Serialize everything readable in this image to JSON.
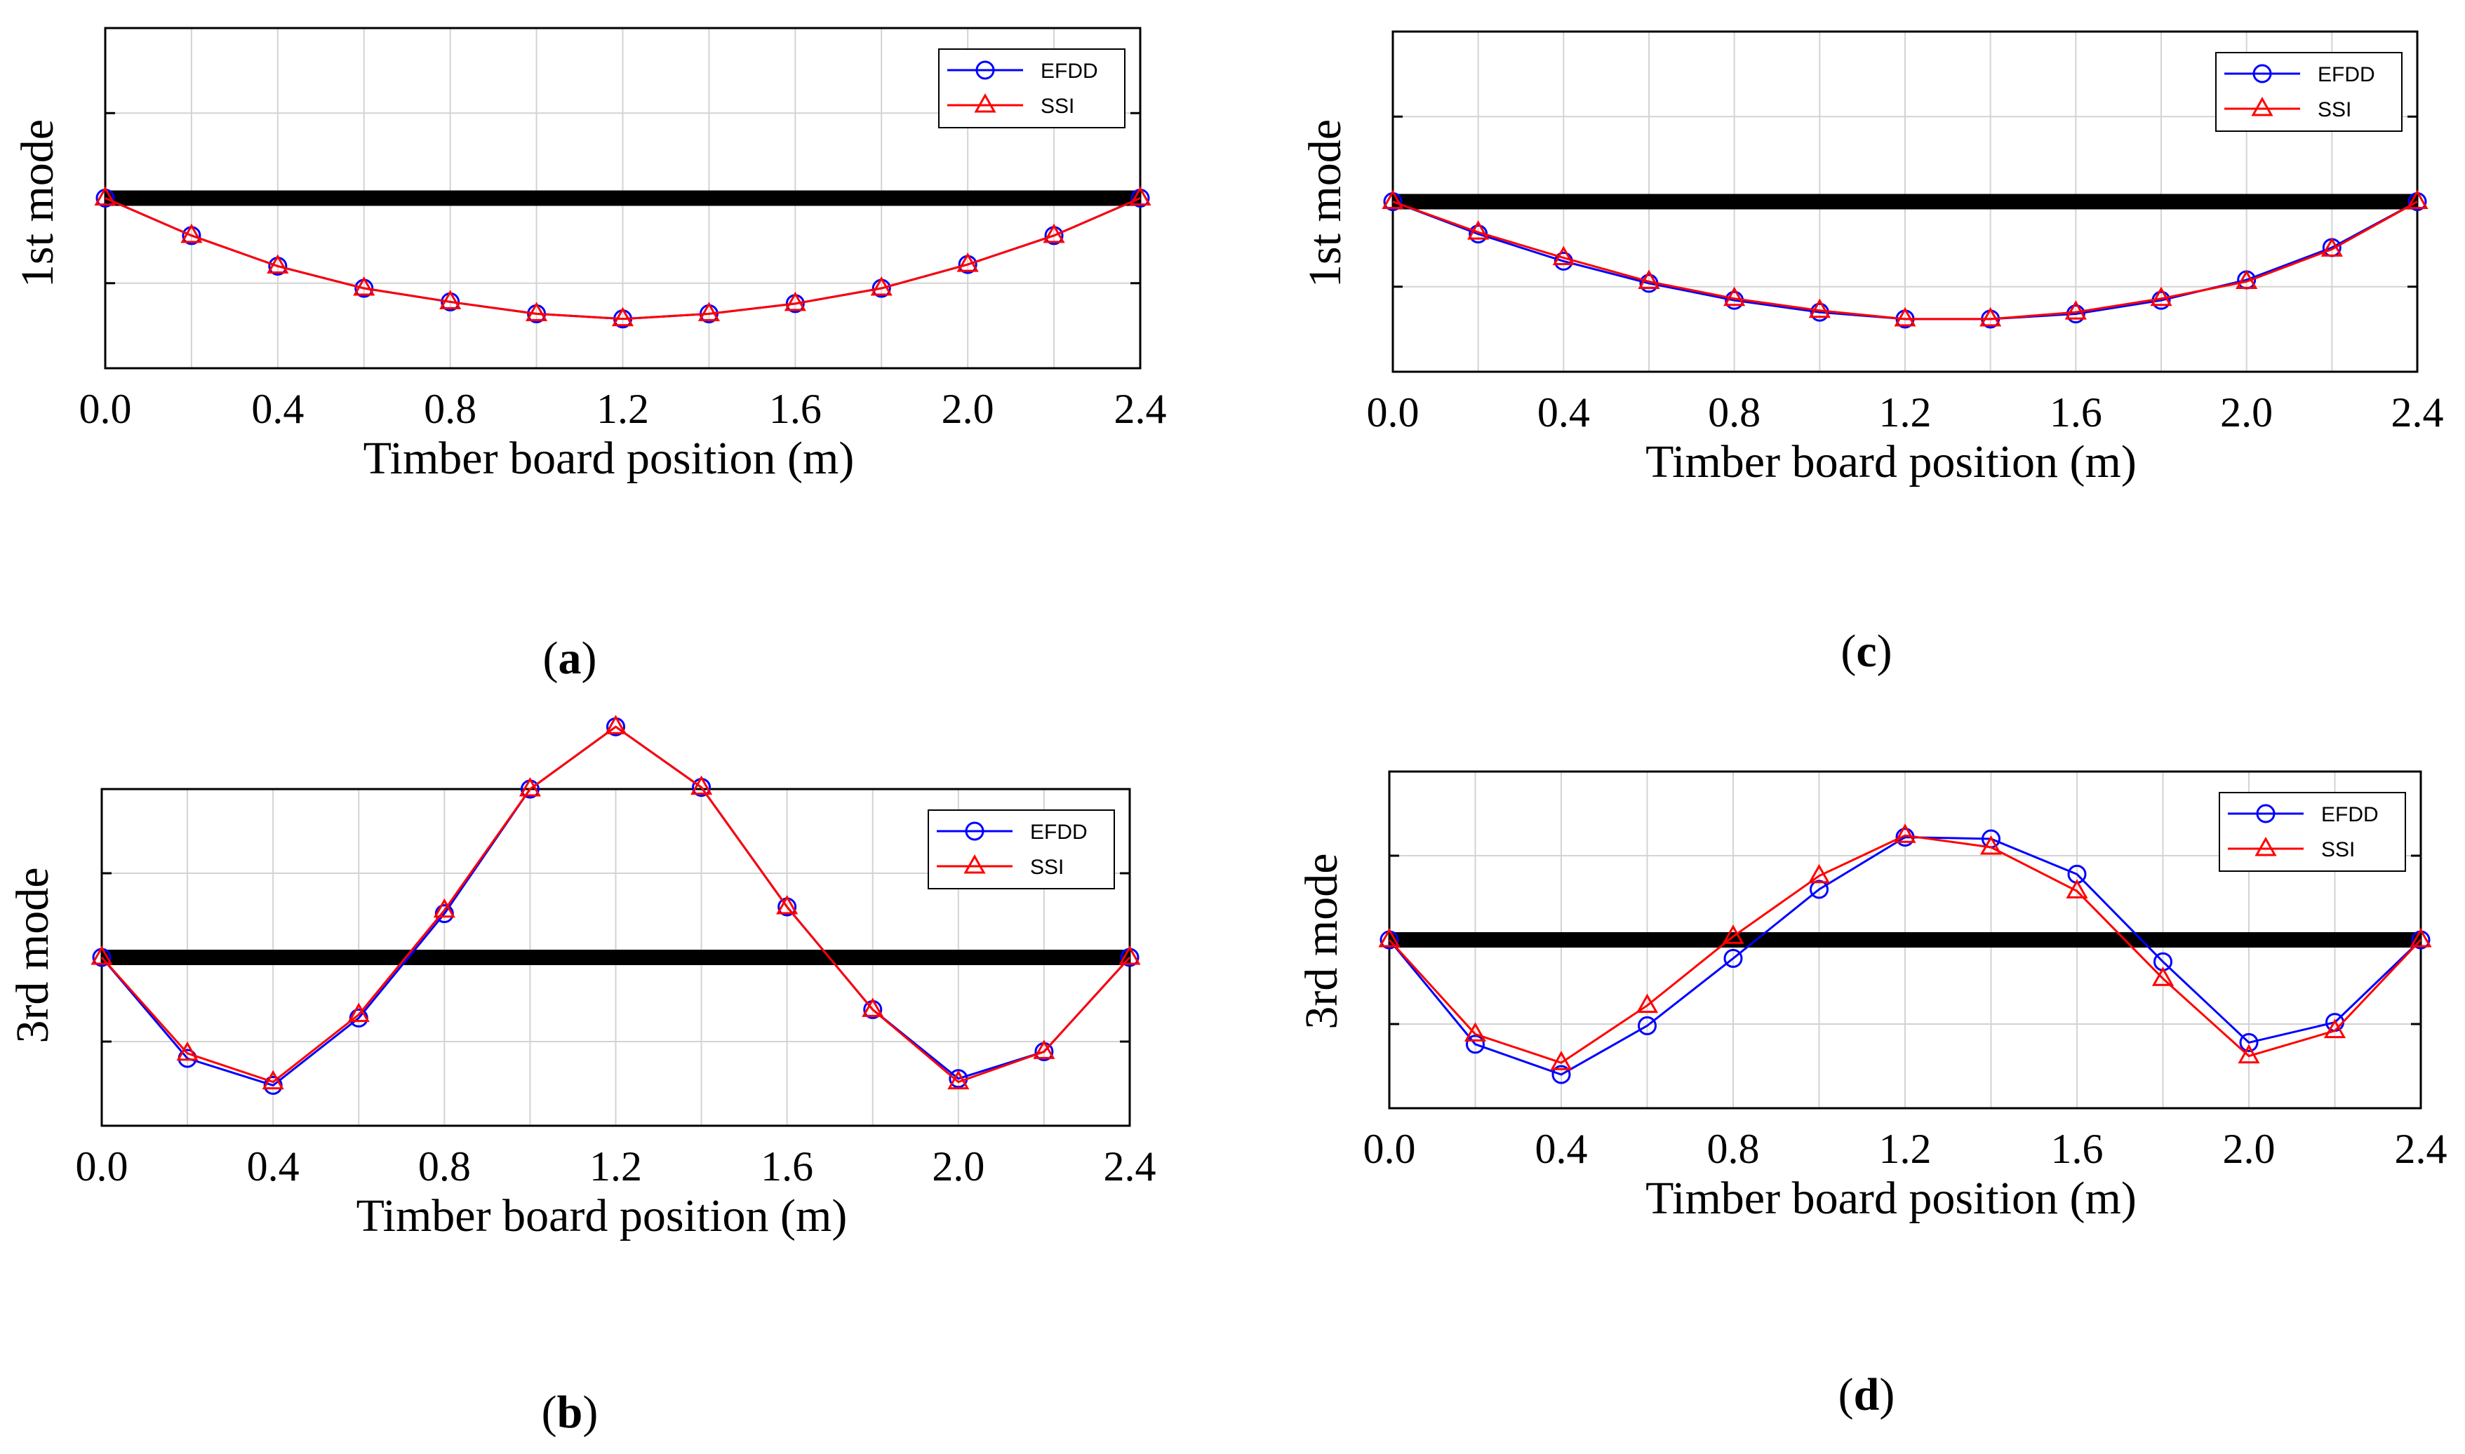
{
  "figure": {
    "x_ticks": [
      "0.0",
      "0.4",
      "0.8",
      "1.2",
      "1.6",
      "2.0",
      "2.4"
    ]
  },
  "chart_data": [
    {
      "type": "line",
      "panel": "a",
      "caption": "(a)",
      "caption_letter": "a",
      "xlabel": "Timber board position (m)",
      "ylabel": "1st mode",
      "xlim": [
        0,
        2.4
      ],
      "ylim": [
        -1,
        1
      ],
      "grid": true,
      "legend": "top-right",
      "x": [
        0,
        0.2,
        0.4,
        0.6,
        0.8,
        1.0,
        1.2,
        1.4,
        1.6,
        1.8,
        2.0,
        2.2,
        2.4
      ],
      "series": [
        {
          "name": "EFDD",
          "color": "#0000ff",
          "marker": "circle",
          "values": [
            0,
            -0.22,
            -0.4,
            -0.53,
            -0.61,
            -0.68,
            -0.71,
            -0.68,
            -0.62,
            -0.53,
            -0.39,
            -0.22,
            0
          ]
        },
        {
          "name": "SSI",
          "color": "#ff0000",
          "marker": "triangle",
          "values": [
            0,
            -0.22,
            -0.4,
            -0.53,
            -0.61,
            -0.68,
            -0.71,
            -0.68,
            -0.62,
            -0.53,
            -0.39,
            -0.22,
            0
          ]
        }
      ]
    },
    {
      "type": "line",
      "panel": "b",
      "caption": "(b)",
      "caption_letter": "b",
      "xlabel": "Timber board position (m)",
      "ylabel": "3rd mode",
      "xlim": [
        0,
        2.4
      ],
      "ylim": [
        -1,
        1
      ],
      "grid": true,
      "legend": "top-right",
      "x": [
        0,
        0.2,
        0.4,
        0.6,
        0.8,
        1.0,
        1.2,
        1.4,
        1.6,
        1.8,
        2.0,
        2.2,
        2.4
      ],
      "series": [
        {
          "name": "EFDD",
          "color": "#0000ff",
          "marker": "circle",
          "values": [
            0,
            -0.6,
            -0.76,
            -0.36,
            0.26,
            1.0,
            1.37,
            1.01,
            0.3,
            -0.31,
            -0.72,
            -0.56,
            0
          ]
        },
        {
          "name": "SSI",
          "color": "#ff0000",
          "marker": "triangle",
          "values": [
            0,
            -0.57,
            -0.74,
            -0.34,
            0.28,
            1.0,
            1.37,
            1.01,
            0.3,
            -0.31,
            -0.74,
            -0.56,
            0
          ]
        }
      ]
    },
    {
      "type": "line",
      "panel": "c",
      "caption": "(c)",
      "caption_letter": "c",
      "xlabel": "Timber board position (m)",
      "ylabel": "1st mode",
      "xlim": [
        0,
        2.4
      ],
      "ylim": [
        -1,
        1
      ],
      "grid": true,
      "legend": "top-right",
      "x": [
        0,
        0.2,
        0.4,
        0.6,
        0.8,
        1.0,
        1.2,
        1.4,
        1.6,
        1.8,
        2.0,
        2.2,
        2.4
      ],
      "series": [
        {
          "name": "EFDD",
          "color": "#0000ff",
          "marker": "circle",
          "values": [
            0,
            -0.19,
            -0.35,
            -0.48,
            -0.58,
            -0.65,
            -0.69,
            -0.69,
            -0.66,
            -0.58,
            -0.46,
            -0.27,
            0
          ]
        },
        {
          "name": "SSI",
          "color": "#ff0000",
          "marker": "triangle",
          "values": [
            0,
            -0.18,
            -0.33,
            -0.47,
            -0.57,
            -0.64,
            -0.69,
            -0.69,
            -0.65,
            -0.57,
            -0.47,
            -0.28,
            0
          ]
        }
      ]
    },
    {
      "type": "line",
      "panel": "d",
      "caption": "(d)",
      "caption_letter": "d",
      "xlabel": "Timber board position (m)",
      "ylabel": "3rd mode",
      "xlim": [
        0,
        2.4
      ],
      "ylim": [
        -1,
        1
      ],
      "grid": true,
      "legend": "top-right",
      "x": [
        0,
        0.2,
        0.4,
        0.6,
        0.8,
        1.0,
        1.2,
        1.4,
        1.6,
        1.8,
        2.0,
        2.2,
        2.4
      ],
      "series": [
        {
          "name": "EFDD",
          "color": "#0000ff",
          "marker": "circle",
          "values": [
            0,
            -0.62,
            -0.8,
            -0.51,
            -0.11,
            0.3,
            0.61,
            0.6,
            0.39,
            -0.13,
            -0.61,
            -0.49,
            0
          ]
        },
        {
          "name": "SSI",
          "color": "#ff0000",
          "marker": "triangle",
          "values": [
            0,
            -0.56,
            -0.73,
            -0.39,
            0.02,
            0.38,
            0.62,
            0.55,
            0.29,
            -0.23,
            -0.69,
            -0.54,
            0
          ]
        }
      ]
    }
  ]
}
